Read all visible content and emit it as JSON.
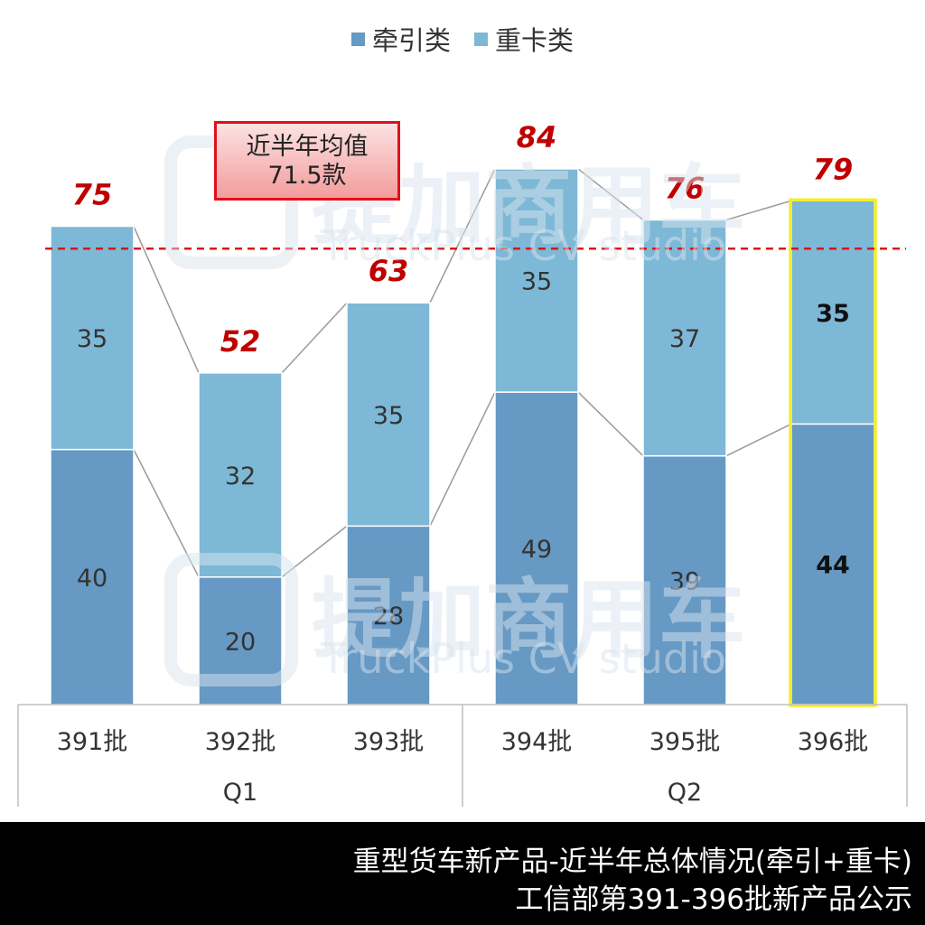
{
  "legend": {
    "series1_label": "牵引类",
    "series2_label": "重卡类"
  },
  "avg_box": {
    "line1": "近半年均值",
    "line2": "71.5款"
  },
  "footer": {
    "line1": "重型货车新产品-近半年总体情况(牵引+重卡)",
    "line2": "工信部第391-396批新产品公示"
  },
  "watermark": {
    "cn": "提加商用车",
    "en": "TruckPlus CV studio"
  },
  "colors": {
    "series1": "#6699c4",
    "series2": "#7db8d6",
    "total_label": "#c00000",
    "average_line": "#e0101a",
    "highlight_border": "#f2ef2a"
  },
  "chart_data": {
    "type": "bar",
    "stacked": true,
    "categories": [
      "391批",
      "392批",
      "393批",
      "394批",
      "395批",
      "396批"
    ],
    "groups": [
      {
        "label": "Q1",
        "categories": [
          "391批",
          "392批",
          "393批"
        ]
      },
      {
        "label": "Q2",
        "categories": [
          "394批",
          "395批",
          "396批"
        ]
      }
    ],
    "series": [
      {
        "name": "牵引类",
        "values": [
          40,
          20,
          28,
          49,
          39,
          44
        ]
      },
      {
        "name": "重卡类",
        "values": [
          35,
          32,
          35,
          35,
          37,
          35
        ]
      }
    ],
    "totals": [
      75,
      52,
      63,
      84,
      76,
      79
    ],
    "average": 71.5,
    "highlight_category": "396批",
    "legend_position": "top-center",
    "grid": false,
    "ylim": [
      0,
      90
    ]
  }
}
